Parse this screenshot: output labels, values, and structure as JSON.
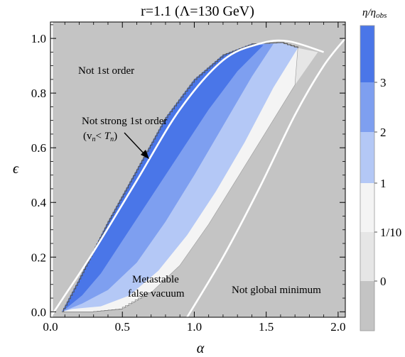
{
  "chart_data": {
    "type": "heatmap",
    "title": "r=1.1 (Λ=130 GeV)",
    "xlabel": "α",
    "ylabel": "ϵ",
    "xlim": [
      0.0,
      2.05
    ],
    "ylim": [
      -0.02,
      1.06
    ],
    "xticks": [
      "0.0",
      "0.5",
      "1.0",
      "1.5",
      "2.0"
    ],
    "xtick_values": [
      0.0,
      0.5,
      1.0,
      1.5,
      2.0
    ],
    "yticks": [
      "0.0",
      "0.2",
      "0.4",
      "0.6",
      "0.8",
      "1.0"
    ],
    "ytick_values": [
      0.0,
      0.2,
      0.4,
      0.6,
      0.8,
      1.0
    ],
    "colorbar": {
      "title_main": "η/η",
      "title_sub": "obs",
      "labels": [
        "3",
        "2",
        "1",
        "1/10",
        "0"
      ],
      "bands": [
        {
          "color": "#4a76e8"
        },
        {
          "color": "#7e9ff0"
        },
        {
          "color": "#b4c8f6"
        },
        {
          "color": "#f4f4f4"
        },
        {
          "color": "#e6e6e6"
        },
        {
          "color": "#c4c4c4"
        }
      ]
    },
    "regions": [
      {
        "name": "Not 1st order",
        "label_at": [
          0.18,
          0.86
        ]
      },
      {
        "name": "Not strong 1st order",
        "sub": "(v",
        "label_at": [
          0.3,
          0.67
        ]
      },
      {
        "name": "Metastable",
        "line2": "false vacuum",
        "label_at": [
          0.92,
          0.05
        ]
      },
      {
        "name": "Not global minimum",
        "label_at": [
          1.6,
          0.03
        ]
      }
    ],
    "boundaries": {
      "nucleation_curve": [
        [
          0.0,
          -0.02
        ],
        [
          0.1,
          0.06
        ],
        [
          0.3,
          0.22
        ],
        [
          0.6,
          0.48
        ],
        [
          0.9,
          0.74
        ],
        [
          1.2,
          0.92
        ],
        [
          1.45,
          0.98
        ],
        [
          1.65,
          0.99
        ],
        [
          1.9,
          0.95
        ]
      ],
      "global_min_curve": [
        [
          0.95,
          -0.02
        ],
        [
          1.2,
          0.2
        ],
        [
          1.45,
          0.45
        ],
        [
          1.7,
          0.72
        ],
        [
          1.9,
          0.9
        ],
        [
          2.05,
          1.0
        ]
      ],
      "left_edge": [
        [
          0.01,
          -0.02
        ],
        [
          0.01,
          1.06
        ]
      ]
    },
    "band_edges": {
      "outer_top": [
        [
          0.08,
          0.0
        ],
        [
          0.2,
          0.12
        ],
        [
          0.4,
          0.33
        ],
        [
          0.6,
          0.52
        ],
        [
          0.8,
          0.71
        ],
        [
          1.0,
          0.85
        ],
        [
          1.2,
          0.94
        ],
        [
          1.4,
          0.98
        ],
        [
          1.6,
          0.985
        ],
        [
          1.72,
          0.965
        ]
      ],
      "outer_bottom": [
        [
          1.86,
          0.95
        ],
        [
          1.7,
          0.83
        ],
        [
          1.5,
          0.66
        ],
        [
          1.3,
          0.49
        ],
        [
          1.1,
          0.32
        ],
        [
          0.9,
          0.17
        ],
        [
          0.7,
          0.07
        ],
        [
          0.5,
          0.01
        ],
        [
          0.3,
          0.0
        ],
        [
          0.08,
          0.0
        ]
      ],
      "eta_1_bottom": [
        [
          1.72,
          0.965
        ],
        [
          1.55,
          0.82
        ],
        [
          1.35,
          0.62
        ],
        [
          1.15,
          0.44
        ],
        [
          0.95,
          0.28
        ],
        [
          0.75,
          0.15
        ],
        [
          0.55,
          0.06
        ],
        [
          0.35,
          0.02
        ],
        [
          0.15,
          0.01
        ]
      ],
      "eta_2_bottom": [
        [
          1.55,
          0.98
        ],
        [
          1.4,
          0.86
        ],
        [
          1.2,
          0.68
        ],
        [
          1.0,
          0.5
        ],
        [
          0.8,
          0.33
        ],
        [
          0.6,
          0.18
        ],
        [
          0.4,
          0.08
        ],
        [
          0.22,
          0.03
        ]
      ],
      "eta_3_bottom": [
        [
          1.48,
          0.975
        ],
        [
          1.3,
          0.88
        ],
        [
          1.1,
          0.74
        ],
        [
          0.9,
          0.58
        ],
        [
          0.7,
          0.42
        ],
        [
          0.5,
          0.26
        ],
        [
          0.35,
          0.14
        ],
        [
          0.22,
          0.06
        ]
      ]
    }
  }
}
